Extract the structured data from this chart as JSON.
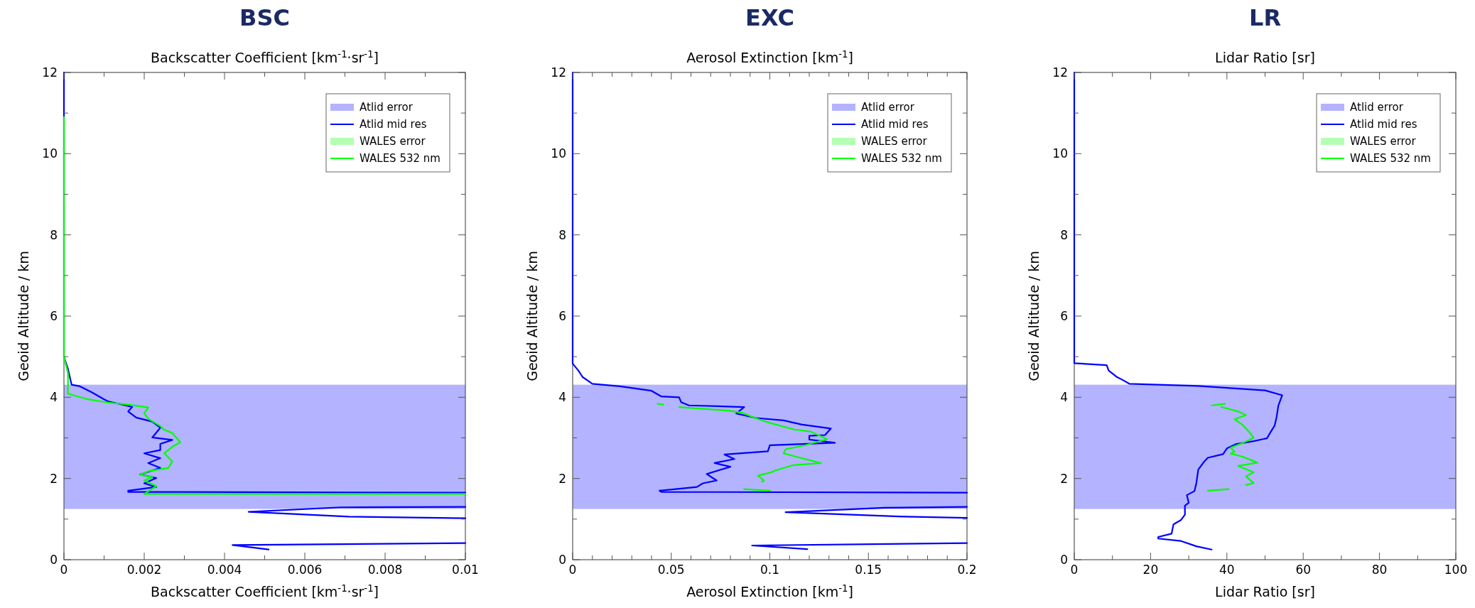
{
  "chart_data": [
    {
      "type": "line",
      "title": "BSC",
      "subtitle": "Backscatter Coefficient [km$^{-1}$·sr$^{-1}$]",
      "xlabel": "Backscatter Coefficient [km$^{-1}$·sr$^{-1}$]",
      "ylabel": "Geoid Altitude / km",
      "xlim": [
        0,
        0.01
      ],
      "xticks": [
        0,
        {
          "value": 0.001,
          "label": null
        },
        0.002,
        {
          "value": 0.003,
          "label": null
        },
        0.004,
        {
          "value": 0.005,
          "label": null
        },
        0.006,
        {
          "value": 0.007,
          "label": null
        },
        0.008,
        {
          "value": 0.009,
          "label": null
        },
        0.01
      ],
      "ylim": [
        0,
        12
      ],
      "yticks": [
        0,
        {
          "value": 1,
          "label": null
        },
        2,
        {
          "value": 3,
          "label": null
        },
        4,
        {
          "value": 5,
          "label": null
        },
        6,
        {
          "value": 7,
          "label": null
        },
        8,
        {
          "value": 9,
          "label": null
        },
        10,
        {
          "value": 11,
          "label": null
        },
        12
      ],
      "legend": "top right",
      "bands": [
        {
          "axis": "y",
          "from": 1.25,
          "to": 4.31,
          "label": "Atlid error",
          "color": "#b3b3ff"
        }
      ],
      "series": [
        {
          "name": "Atlid mid res",
          "color": "#0000ff",
          "x": [
            0,
            0,
            0.0001,
            0.00019,
            0.0004,
            0.0007,
            0.001,
            0.0011,
            0.0017,
            0.0016,
            0.0018,
            0.0022,
            0.0024,
            0.0022,
            0.0027,
            0.0024,
            0.0024,
            0.002,
            0.0024,
            0.0021,
            0.0024,
            0.0019,
            0.0023,
            0.002,
            0.0023,
            0.0016,
            0.0016,
            0.01,
            null,
            0.01,
            0.0069,
            0.0046,
            0.0071,
            0.01,
            null,
            0.01,
            0.0042,
            0.0051
          ],
          "values": [
            12,
            5.0,
            4.7,
            4.31,
            4.27,
            4.12,
            3.95,
            3.9,
            3.76,
            3.65,
            3.5,
            3.4,
            3.25,
            3.01,
            2.95,
            2.85,
            2.7,
            2.62,
            2.5,
            2.38,
            2.26,
            2.1,
            2.01,
            1.88,
            1.79,
            1.7,
            1.67,
            1.65,
            null,
            1.3,
            1.29,
            1.18,
            1.06,
            1.02,
            null,
            0.41,
            0.36,
            0.25
          ]
        },
        {
          "name": "WALES error",
          "type": "area",
          "color": "#b3ffb3"
        },
        {
          "name": "WALES 532 nm",
          "color": "#00ff00",
          "x": [
            0,
            0,
            0.0001,
            0.0001,
            0.0001,
            0.0006,
            0.0011,
            0.0016,
            0.0021,
            0.002,
            0.0021,
            0.0024,
            0.0025,
            0.0027,
            0.0029,
            0.0027,
            0.0025,
            0.0027,
            0.0026,
            0.0021,
            0.0019,
            0.0022,
            0.002,
            0.0023,
            0.002,
            0.01
          ],
          "values": [
            10.9,
            5.0,
            4.6,
            4.31,
            4.09,
            3.95,
            3.87,
            3.82,
            3.75,
            3.6,
            3.47,
            3.29,
            3.2,
            3.12,
            2.89,
            2.78,
            2.62,
            2.42,
            2.26,
            2.18,
            2.09,
            2.03,
            1.95,
            1.81,
            1.62,
            1.62
          ]
        }
      ]
    },
    {
      "type": "line",
      "title": "EXC",
      "subtitle": "Aerosol Extinction [km$^{-1}$]",
      "xlabel": "Aerosol Extinction [km$^{-1}$]",
      "ylabel": "Geoid Altitude / km",
      "xlim": [
        0,
        0.2
      ],
      "xticks": [
        0,
        {
          "value": 0.01,
          "label": null
        },
        {
          "value": 0.02,
          "label": null
        },
        {
          "value": 0.03,
          "label": null
        },
        {
          "value": 0.04,
          "label": null
        },
        0.05,
        {
          "value": 0.06,
          "label": null
        },
        {
          "value": 0.07,
          "label": null
        },
        {
          "value": 0.08,
          "label": null
        },
        {
          "value": 0.09,
          "label": null
        },
        0.1,
        {
          "value": 0.11,
          "label": null
        },
        {
          "value": 0.12,
          "label": null
        },
        {
          "value": 0.13,
          "label": null
        },
        {
          "value": 0.14,
          "label": null
        },
        0.15,
        {
          "value": 0.16,
          "label": null
        },
        {
          "value": 0.17,
          "label": null
        },
        {
          "value": 0.18,
          "label": null
        },
        {
          "value": 0.19,
          "label": null
        },
        0.2
      ],
      "ylim": [
        0,
        12
      ],
      "yticks": [
        0,
        {
          "value": 1,
          "label": null
        },
        2,
        {
          "value": 3,
          "label": null
        },
        4,
        {
          "value": 5,
          "label": null
        },
        6,
        {
          "value": 7,
          "label": null
        },
        8,
        {
          "value": 9,
          "label": null
        },
        10,
        {
          "value": 11,
          "label": null
        },
        12
      ],
      "legend": "top right",
      "bands": [
        {
          "axis": "y",
          "from": 1.25,
          "to": 4.31,
          "label": "Atlid error",
          "color": "#b3b3ff"
        }
      ],
      "series": [
        {
          "name": "Atlid mid res",
          "color": "#0000ff",
          "x": [
            0,
            0,
            0.003,
            0.005,
            0.01,
            0.024,
            0.04,
            0.045,
            0.054,
            0.055,
            0.059,
            0.087,
            0.083,
            0.093,
            0.107,
            0.116,
            0.131,
            0.128,
            0.12,
            0.12,
            0.133,
            0.1,
            0.099,
            0.077,
            0.082,
            0.072,
            0.08,
            0.068,
            0.073,
            0.066,
            0.063,
            0.044,
            0.045,
            0.2,
            null,
            0.2,
            0.158,
            0.108,
            0.169,
            0.2,
            null,
            0.2,
            0.091,
            0.119
          ],
          "values": [
            12,
            4.83,
            4.65,
            4.5,
            4.33,
            4.27,
            4.16,
            4.02,
            4.0,
            3.88,
            3.8,
            3.76,
            3.6,
            3.49,
            3.43,
            3.33,
            3.23,
            3.07,
            3.05,
            2.96,
            2.88,
            2.82,
            2.67,
            2.59,
            2.48,
            2.38,
            2.29,
            2.11,
            1.95,
            1.88,
            1.79,
            1.7,
            1.67,
            1.65,
            null,
            1.3,
            1.28,
            1.17,
            1.06,
            1.03,
            null,
            0.41,
            0.35,
            0.26
          ]
        },
        {
          "name": "WALES error",
          "type": "area",
          "color": "#b3ffb3"
        },
        {
          "name": "WALES 532 nm",
          "color": "#00ff00",
          "x": [
            0.043,
            0.046,
            null,
            0.054,
            0.079,
            0.086,
            0.09,
            0.093,
            0.1,
            0.112,
            0.121,
            0.129,
            0.118,
            0.108,
            0.107,
            0.113,
            0.126,
            0.112,
            0.103,
            0.1,
            0.094,
            0.097,
            0.096,
            null,
            0.087,
            0.1
          ],
          "values": [
            3.84,
            3.82,
            null,
            3.76,
            3.67,
            3.62,
            3.54,
            3.48,
            3.37,
            3.21,
            3.15,
            2.97,
            2.82,
            2.72,
            2.62,
            2.54,
            2.38,
            2.33,
            2.2,
            2.14,
            2.07,
            1.95,
            1.92,
            null,
            1.74,
            1.7
          ]
        }
      ]
    },
    {
      "type": "line",
      "title": "LR",
      "subtitle": "Lidar Ratio [sr]",
      "xlabel": "Lidar Ratio [sr]",
      "ylabel": "Geoid Altitude / km",
      "xlim": [
        0,
        100
      ],
      "xticks": [
        0,
        {
          "value": 10,
          "label": null
        },
        20,
        {
          "value": 30,
          "label": null
        },
        40,
        {
          "value": 50,
          "label": null
        },
        60,
        {
          "value": 70,
          "label": null
        },
        80,
        {
          "value": 90,
          "label": null
        },
        100
      ],
      "ylim": [
        0,
        12
      ],
      "yticks": [
        0,
        {
          "value": 1,
          "label": null
        },
        2,
        {
          "value": 3,
          "label": null
        },
        4,
        {
          "value": 5,
          "label": null
        },
        6,
        {
          "value": 7,
          "label": null
        },
        8,
        {
          "value": 9,
          "label": null
        },
        10,
        {
          "value": 11,
          "label": null
        },
        12
      ],
      "legend": "top right",
      "bands": [
        {
          "axis": "y",
          "from": 1.25,
          "to": 4.31,
          "label": "Atlid error",
          "color": "#b3b3ff"
        }
      ],
      "series": [
        {
          "name": "Atlid mid res",
          "color": "#0000ff",
          "x": [
            0,
            0,
            8.5,
            9,
            11,
            13,
            14.5,
            32.5,
            50,
            54.5,
            53.5,
            53,
            52.5,
            51.5,
            50.5,
            47,
            42.5,
            40,
            39,
            35,
            34,
            32.5,
            32,
            31.5,
            29.5,
            30,
            29,
            29,
            28,
            26,
            25.5,
            22,
            22,
            28,
            32,
            36
          ],
          "values": [
            12,
            4.84,
            4.79,
            4.66,
            4.51,
            4.41,
            4.33,
            4.28,
            4.17,
            4.05,
            3.8,
            3.5,
            3.3,
            3.15,
            2.99,
            2.92,
            2.85,
            2.74,
            2.6,
            2.51,
            2.41,
            2.22,
            1.89,
            1.69,
            1.59,
            1.4,
            1.33,
            1.11,
            0.98,
            0.87,
            0.64,
            0.56,
            0.52,
            0.46,
            0.33,
            0.25
          ]
        },
        {
          "name": "WALES error",
          "type": "area",
          "color": "#b3ffb3"
        },
        {
          "name": "WALES 532 nm",
          "color": "#00ff00",
          "x": [
            36,
            39.5,
            null,
            38.5,
            43,
            45,
            42,
            44,
            46,
            47,
            44,
            41,
            42,
            41,
            44,
            48,
            43,
            47,
            45,
            47,
            45,
            null,
            35,
            40.5
          ],
          "values": [
            3.8,
            3.84,
            null,
            3.76,
            3.65,
            3.56,
            3.46,
            3.33,
            3.13,
            3.0,
            2.87,
            2.76,
            2.66,
            2.61,
            2.54,
            2.39,
            2.31,
            2.15,
            2.05,
            1.89,
            1.84,
            null,
            1.7,
            1.74
          ]
        }
      ]
    }
  ]
}
